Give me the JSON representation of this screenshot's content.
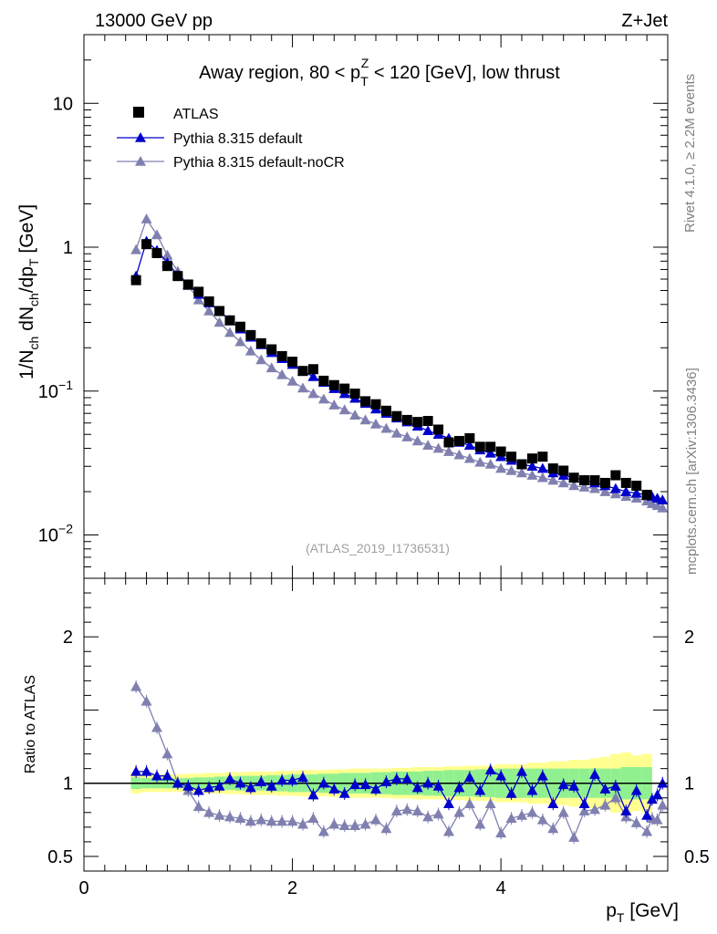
{
  "header": {
    "left": "13000 GeV pp",
    "right": "Z+Jet"
  },
  "side": {
    "top": "Rivet 4.1.0, ≥ 2.2M events",
    "bottom": "mcplots.cern.ch [arXiv:1306.3436]"
  },
  "chart_data": {
    "type": "scatter",
    "title": {
      "pre": "Away region, 80 < p",
      "sub": "T",
      "sup": "Z",
      "post": " < 120 [GeV], low thrust"
    },
    "watermark": "(ATLAS_2019_I1736531)",
    "xlabel": {
      "main": "p",
      "sub": "T",
      "unit": " [GeV]"
    },
    "ylabel": {
      "a": "1/N",
      "a_sub": "ch",
      "b": " dN",
      "b_sub": "ch",
      "c": "/dp",
      "c_sub": "T",
      "d": " [GeV]"
    },
    "ratio_ylabel": "Ratio to ATLAS",
    "xlim": [
      0,
      5.6
    ],
    "ylim": [
      0.005,
      30
    ],
    "yscale": "log",
    "ratio_ylim": [
      0.4,
      2.4
    ],
    "x_ticks": [
      "0",
      "2",
      "4"
    ],
    "y_ticks": [
      {
        "value": 10,
        "base": "10",
        "exp": ""
      },
      {
        "value": 1,
        "base": "1",
        "exp": ""
      },
      {
        "value": 0.1,
        "base": "10",
        "exp": "−1"
      },
      {
        "value": 0.01,
        "base": "10",
        "exp": "−2"
      }
    ],
    "ratio_ticks": [
      "2",
      "1",
      "0.5"
    ],
    "legend_position": "top-left",
    "x": [
      0.5,
      0.6,
      0.7,
      0.8,
      0.9,
      1.0,
      1.1,
      1.2,
      1.3,
      1.4,
      1.5,
      1.6,
      1.7,
      1.8,
      1.9,
      2.0,
      2.1,
      2.2,
      2.3,
      2.4,
      2.5,
      2.6,
      2.7,
      2.8,
      2.9,
      3.0,
      3.1,
      3.2,
      3.3,
      3.4,
      3.5,
      3.6,
      3.7,
      3.8,
      3.9,
      4.0,
      4.1,
      4.2,
      4.3,
      4.4,
      4.5,
      4.6,
      4.7,
      4.8,
      4.9,
      5.0,
      5.1,
      5.2,
      5.3,
      5.4
    ],
    "series": [
      {
        "name": "ATLAS",
        "marker": "square",
        "color": "#000000",
        "values": [
          0.59,
          1.05,
          0.91,
          0.74,
          0.63,
          0.55,
          0.49,
          0.42,
          0.36,
          0.31,
          0.28,
          0.245,
          0.215,
          0.195,
          0.175,
          0.16,
          0.138,
          0.142,
          0.118,
          0.11,
          0.104,
          0.096,
          0.085,
          0.081,
          0.073,
          0.067,
          0.063,
          0.061,
          0.062,
          0.054,
          0.044,
          0.045,
          0.047,
          0.041,
          0.041,
          0.038,
          0.035,
          0.031,
          0.034,
          0.035,
          0.029,
          0.028,
          0.025,
          0.024,
          0.024,
          0.023,
          0.026,
          0.023,
          0.022,
          0.019
        ],
        "band_inner": [
          0.04,
          0.035,
          0.035,
          0.035,
          0.035,
          0.035,
          0.04,
          0.04,
          0.045,
          0.045,
          0.05,
          0.05,
          0.05,
          0.055,
          0.055,
          0.06,
          0.06,
          0.06,
          0.065,
          0.065,
          0.07,
          0.07,
          0.07,
          0.075,
          0.075,
          0.08,
          0.08,
          0.08,
          0.085,
          0.085,
          0.09,
          0.09,
          0.09,
          0.095,
          0.095,
          0.1,
          0.1,
          0.1,
          0.1,
          0.1,
          0.1,
          0.1,
          0.1,
          0.1,
          0.1,
          0.1,
          0.1,
          0.11,
          0.11,
          0.11
        ],
        "band_outer": [
          0.07,
          0.06,
          0.06,
          0.06,
          0.06,
          0.065,
          0.065,
          0.07,
          0.07,
          0.075,
          0.075,
          0.08,
          0.08,
          0.08,
          0.085,
          0.085,
          0.09,
          0.09,
          0.09,
          0.095,
          0.095,
          0.1,
          0.1,
          0.1,
          0.1,
          0.105,
          0.105,
          0.11,
          0.11,
          0.11,
          0.115,
          0.115,
          0.12,
          0.12,
          0.12,
          0.13,
          0.13,
          0.13,
          0.14,
          0.14,
          0.15,
          0.15,
          0.16,
          0.16,
          0.17,
          0.18,
          0.2,
          0.21,
          0.19,
          0.2
        ]
      },
      {
        "name": "Pythia 8.315 default",
        "marker": "triangle",
        "color": "#0000cc",
        "ratio": [
          1.08,
          1.08,
          1.05,
          1.05,
          1.0,
          0.98,
          0.95,
          0.97,
          0.98,
          1.03,
          1.0,
          0.97,
          1.01,
          0.98,
          1.02,
          1.02,
          1.04,
          0.92,
          1.0,
          0.96,
          0.93,
          0.99,
          0.99,
          0.96,
          1.01,
          1.03,
          1.03,
          0.97,
          1.0,
          0.98,
          0.86,
          0.97,
          1.04,
          0.95,
          1.09,
          1.05,
          0.93,
          1.08,
          0.95,
          1.05,
          0.86,
          0.99,
          0.98,
          0.86,
          1.06,
          0.96,
          0.98,
          0.81,
          0.95,
          0.78,
          0.89,
          0.92,
          1.0
        ],
        "ratio_x": [
          0.5,
          0.6,
          0.7,
          0.8,
          0.9,
          1.0,
          1.1,
          1.2,
          1.3,
          1.4,
          1.5,
          1.6,
          1.7,
          1.8,
          1.9,
          2.0,
          2.1,
          2.2,
          2.3,
          2.4,
          2.5,
          2.6,
          2.7,
          2.8,
          2.9,
          3.0,
          3.1,
          3.2,
          3.3,
          3.4,
          3.5,
          3.6,
          3.7,
          3.8,
          3.9,
          4.0,
          4.1,
          4.2,
          4.3,
          4.4,
          4.5,
          4.6,
          4.7,
          4.8,
          4.9,
          5.0,
          5.1,
          5.2,
          5.3,
          5.4,
          5.45,
          5.5,
          5.55
        ]
      },
      {
        "name": "Pythia 8.315 default-noCR",
        "marker": "triangle",
        "color": "#8080b0",
        "ratio": [
          1.66,
          1.56,
          1.38,
          1.2,
          1.0,
          0.95,
          0.84,
          0.8,
          0.78,
          0.77,
          0.76,
          0.74,
          0.75,
          0.74,
          0.74,
          0.74,
          0.72,
          0.76,
          0.67,
          0.72,
          0.71,
          0.71,
          0.72,
          0.75,
          0.69,
          0.81,
          0.82,
          0.81,
          0.77,
          0.79,
          0.67,
          0.8,
          0.86,
          0.72,
          0.86,
          0.66,
          0.76,
          0.78,
          0.8,
          0.75,
          0.69,
          0.8,
          0.63,
          0.81,
          0.82,
          0.85,
          0.9,
          0.77,
          0.73,
          0.67,
          0.76,
          0.75,
          0.85
        ],
        "ratio_x": [
          0.5,
          0.6,
          0.7,
          0.8,
          0.9,
          1.0,
          1.1,
          1.2,
          1.3,
          1.4,
          1.5,
          1.6,
          1.7,
          1.8,
          1.9,
          2.0,
          2.1,
          2.2,
          2.3,
          2.4,
          2.5,
          2.6,
          2.7,
          2.8,
          2.9,
          3.0,
          3.1,
          3.2,
          3.3,
          3.4,
          3.5,
          3.6,
          3.7,
          3.8,
          3.9,
          4.0,
          4.1,
          4.2,
          4.3,
          4.4,
          4.5,
          4.6,
          4.7,
          4.8,
          4.9,
          5.0,
          5.1,
          5.2,
          5.3,
          5.4,
          5.45,
          5.5,
          5.55
        ]
      }
    ],
    "main_default": [
      0.63,
      1.1,
      0.95,
      0.78,
      0.64,
      0.55,
      0.47,
      0.41,
      0.36,
      0.31,
      0.27,
      0.237,
      0.21,
      0.185,
      0.168,
      0.153,
      0.138,
      0.126,
      0.115,
      0.104,
      0.096,
      0.089,
      0.082,
      0.075,
      0.07,
      0.065,
      0.061,
      0.057,
      0.053,
      0.05,
      0.047,
      0.044,
      0.042,
      0.039,
      0.037,
      0.035,
      0.033,
      0.031,
      0.03,
      0.029,
      0.027,
      0.026,
      0.025,
      0.024,
      0.023,
      0.022,
      0.021,
      0.02,
      0.0195,
      0.019,
      0.0185,
      0.018,
      0.0175
    ],
    "main_nocr": [
      0.96,
      1.57,
      1.22,
      0.88,
      0.68,
      0.54,
      0.43,
      0.36,
      0.3,
      0.255,
      0.22,
      0.19,
      0.165,
      0.145,
      0.13,
      0.117,
      0.105,
      0.096,
      0.088,
      0.08,
      0.074,
      0.068,
      0.063,
      0.059,
      0.055,
      0.051,
      0.048,
      0.045,
      0.042,
      0.04,
      0.038,
      0.036,
      0.034,
      0.032,
      0.031,
      0.029,
      0.028,
      0.027,
      0.026,
      0.025,
      0.024,
      0.023,
      0.022,
      0.0215,
      0.021,
      0.02,
      0.0193,
      0.0185,
      0.018,
      0.0172,
      0.0165,
      0.016,
      0.0154
    ]
  }
}
